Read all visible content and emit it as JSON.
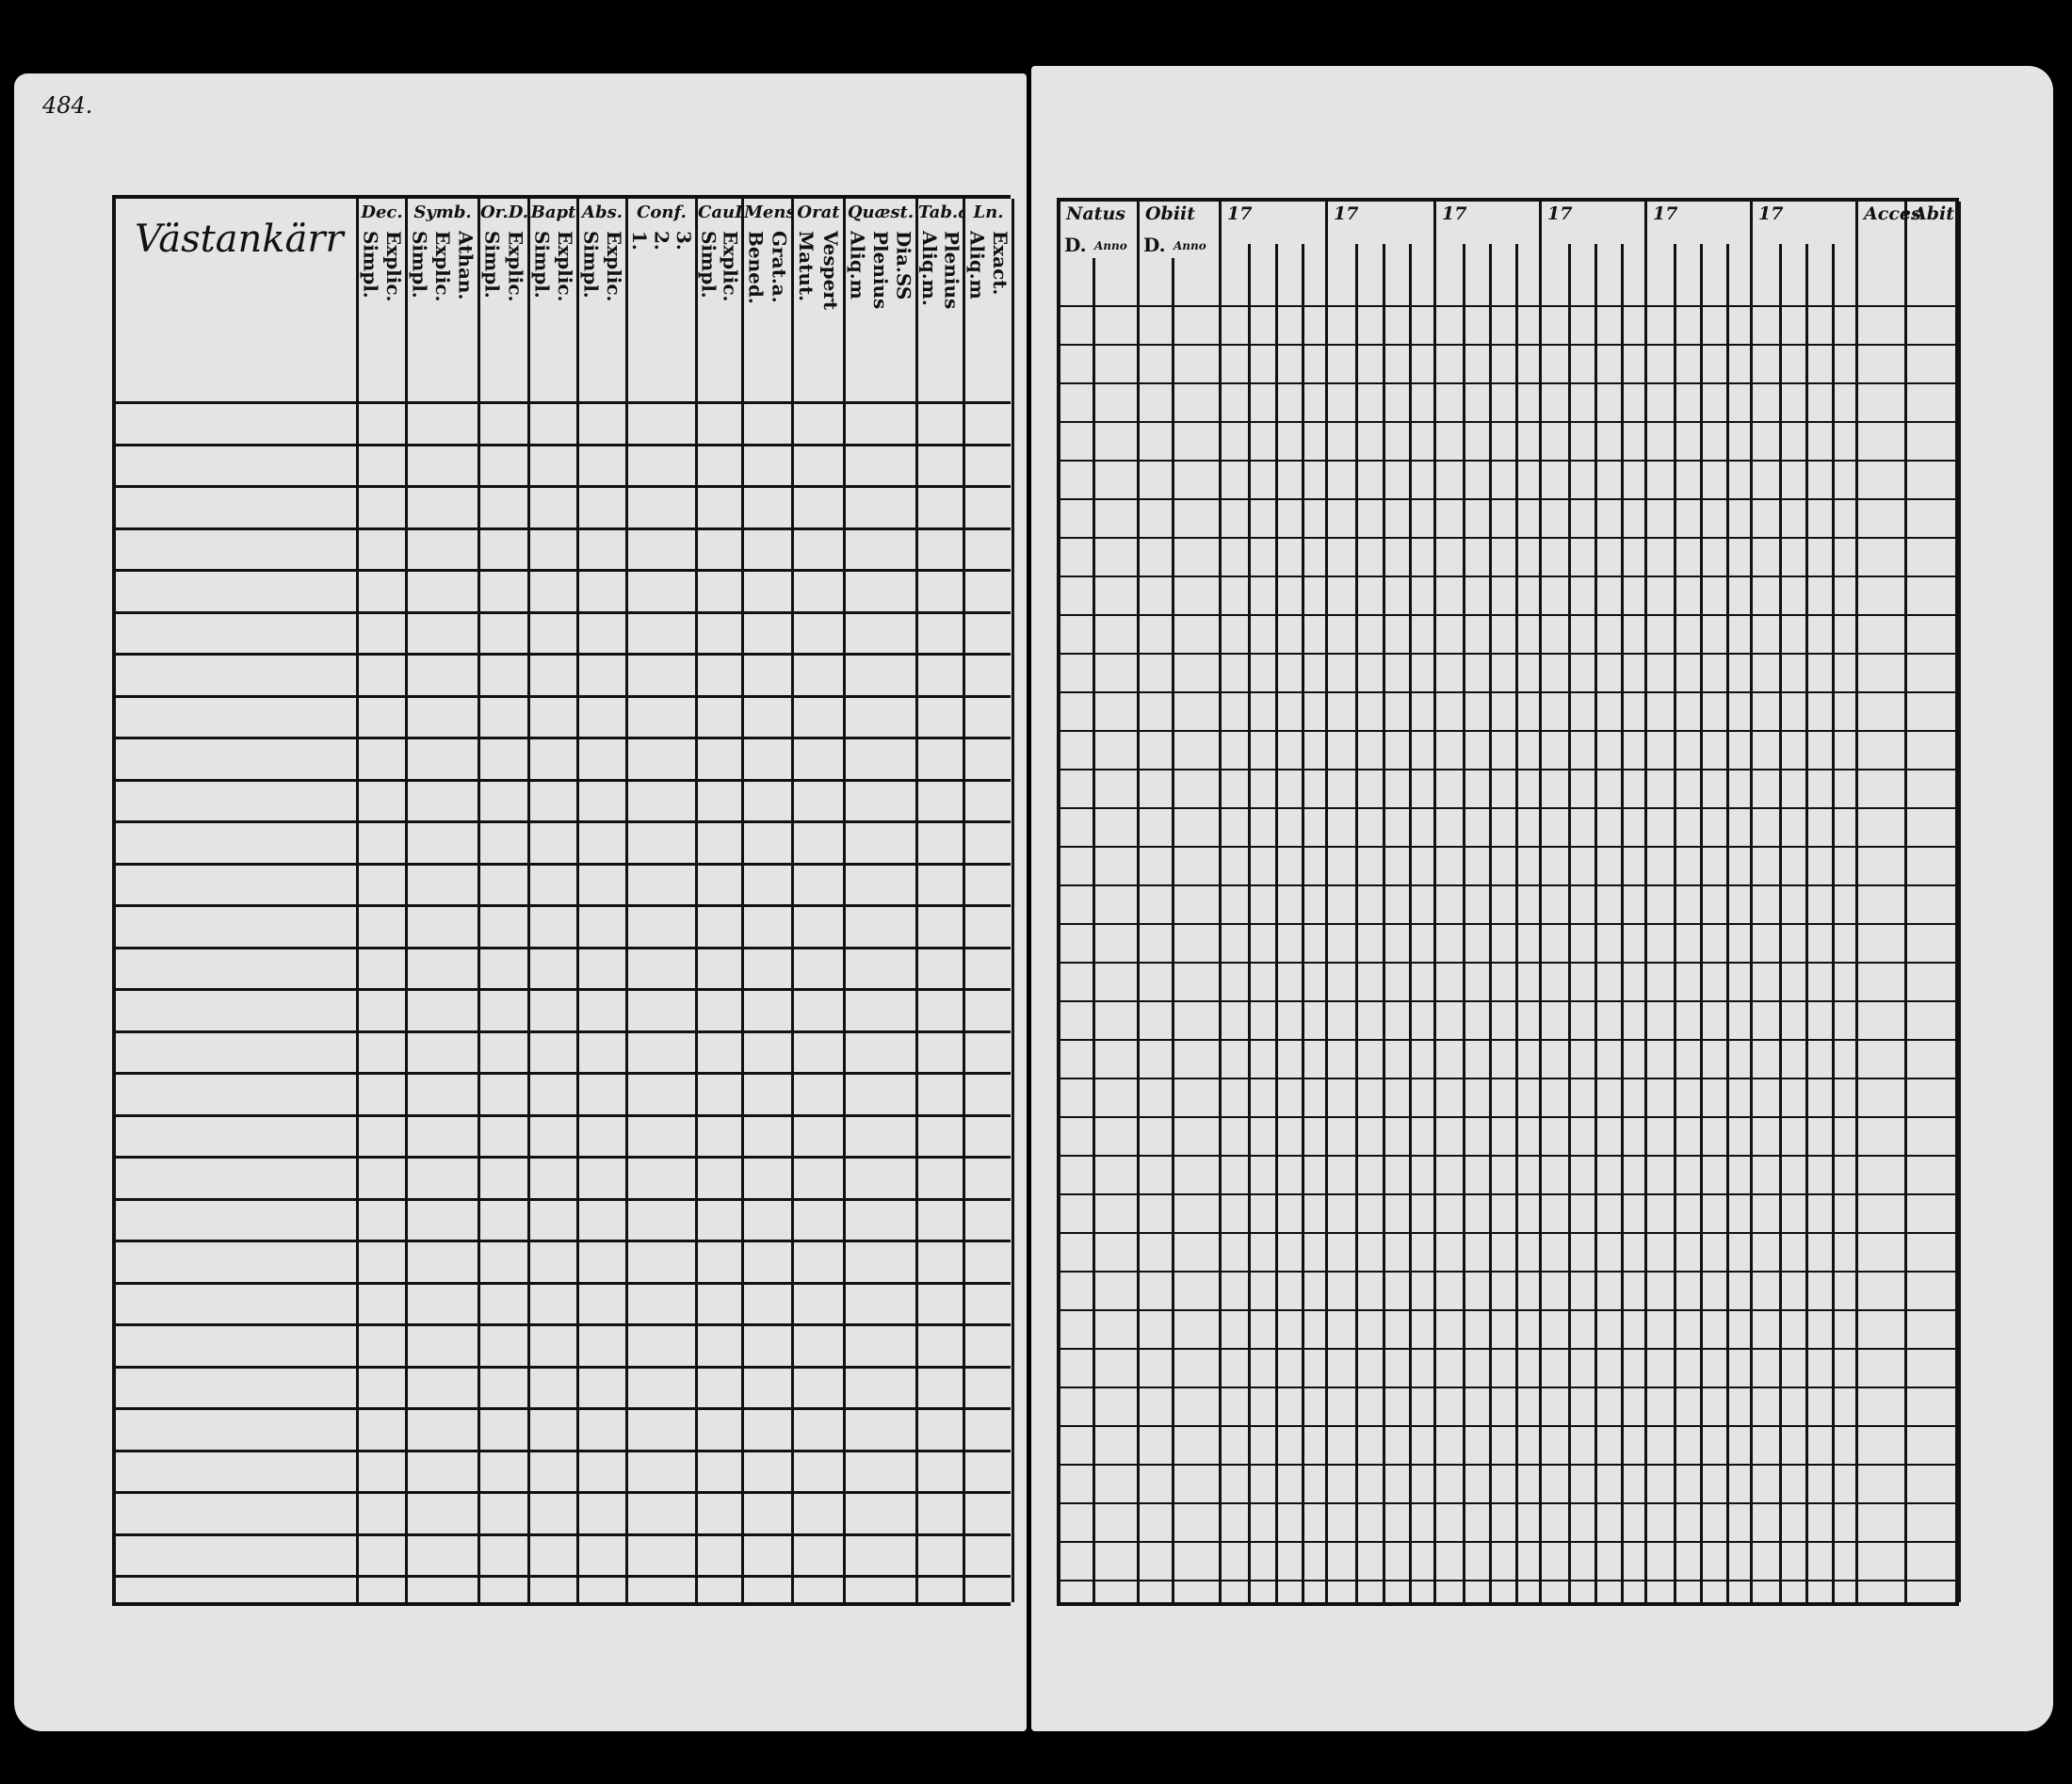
{
  "left_page": {
    "page_number": "484.",
    "place_name": "Västankärr",
    "columns": [
      {
        "head": "Dec.",
        "subs": [
          "Simpl.",
          "Explic."
        ]
      },
      {
        "head": "Symb.",
        "subs": [
          "Simpl.",
          "Explic.",
          "Athan."
        ]
      },
      {
        "head": "Or.D.",
        "subs": [
          "Simpl.",
          "Explic."
        ]
      },
      {
        "head": "Bapt",
        "subs": [
          "Simpl.",
          "Explic."
        ]
      },
      {
        "head": "Abs.",
        "subs": [
          "Simpl.",
          "Explic."
        ]
      },
      {
        "head": "Conf.",
        "subs": [
          "1.",
          "2.",
          "3."
        ]
      },
      {
        "head": "CauD",
        "subs": [
          "Simpl.",
          "Explic."
        ]
      },
      {
        "head": "Mens",
        "subs": [
          "Bened.",
          "Grat.a."
        ]
      },
      {
        "head": "Orat",
        "subs": [
          "Matut.",
          "Vespert"
        ]
      },
      {
        "head": "Quæst.",
        "subs": [
          "Aliq.m",
          "Plenius",
          "Dia.SS"
        ]
      },
      {
        "head": "Tab.ǽ",
        "subs": [
          "Aliq.m.",
          "Plenius"
        ]
      },
      {
        "head": "Ln.",
        "subs": [
          "Aliq.m",
          "Exact."
        ]
      }
    ]
  },
  "right_page": {
    "columns": [
      {
        "head": "Natus",
        "subs": [
          "D.",
          "Anno"
        ]
      },
      {
        "head": "Obiit",
        "subs": [
          "D.",
          "Anno"
        ]
      },
      {
        "head": "17"
      },
      {
        "head": "17"
      },
      {
        "head": "17"
      },
      {
        "head": "17"
      },
      {
        "head": "17"
      },
      {
        "head": "17"
      },
      {
        "head": "Acces"
      },
      {
        "head": "Abit"
      }
    ]
  },
  "colors": {
    "paper": "#e4e4e4",
    "ink": "#111111",
    "background": "#000000"
  }
}
